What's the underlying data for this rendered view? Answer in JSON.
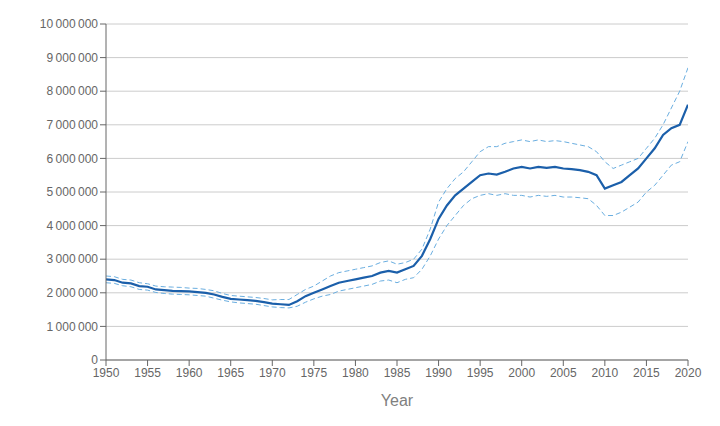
{
  "chart_data": {
    "type": "line",
    "xlabel": "Year",
    "x": [
      1950,
      1951,
      1952,
      1953,
      1954,
      1955,
      1956,
      1957,
      1958,
      1959,
      1960,
      1961,
      1962,
      1963,
      1964,
      1965,
      1966,
      1967,
      1968,
      1969,
      1970,
      1971,
      1972,
      1973,
      1974,
      1975,
      1976,
      1977,
      1978,
      1979,
      1980,
      1981,
      1982,
      1983,
      1984,
      1985,
      1986,
      1987,
      1988,
      1989,
      1990,
      1991,
      1992,
      1993,
      1994,
      1995,
      1996,
      1997,
      1998,
      1999,
      2000,
      2001,
      2002,
      2003,
      2004,
      2005,
      2006,
      2007,
      2008,
      2009,
      2010,
      2011,
      2012,
      2013,
      2014,
      2015,
      2016,
      2017,
      2018,
      2019,
      2020
    ],
    "series": [
      {
        "color": "#6aaee0",
        "line_style": "dashed",
        "values": [
          2500000,
          2480000,
          2400000,
          2380000,
          2300000,
          2270000,
          2200000,
          2180000,
          2170000,
          2160000,
          2140000,
          2130000,
          2100000,
          2060000,
          1980000,
          1920000,
          1900000,
          1880000,
          1860000,
          1830000,
          1790000,
          1800000,
          1800000,
          1950000,
          2100000,
          2200000,
          2350000,
          2500000,
          2600000,
          2650000,
          2700000,
          2750000,
          2800000,
          2900000,
          2950000,
          2850000,
          2900000,
          3000000,
          3300000,
          3900000,
          4700000,
          5100000,
          5400000,
          5600000,
          5900000,
          6200000,
          6350000,
          6350000,
          6450000,
          6500000,
          6550000,
          6500000,
          6550000,
          6500000,
          6530000,
          6500000,
          6450000,
          6400000,
          6350000,
          6200000,
          5900000,
          5700000,
          5800000,
          5900000,
          6000000,
          6300000,
          6600000,
          7000000,
          7500000,
          8000000,
          8700000
        ]
      },
      {
        "color": "#6aaee0",
        "line_style": "dashed",
        "values": [
          2300000,
          2280000,
          2210000,
          2180000,
          2100000,
          2080000,
          2010000,
          1980000,
          1960000,
          1950000,
          1940000,
          1920000,
          1900000,
          1840000,
          1780000,
          1730000,
          1700000,
          1680000,
          1660000,
          1620000,
          1580000,
          1560000,
          1550000,
          1600000,
          1720000,
          1820000,
          1900000,
          1950000,
          2050000,
          2100000,
          2150000,
          2200000,
          2250000,
          2350000,
          2380000,
          2300000,
          2400000,
          2450000,
          2700000,
          3100000,
          3600000,
          4000000,
          4300000,
          4600000,
          4800000,
          4900000,
          4950000,
          4900000,
          4950000,
          4900000,
          4900000,
          4850000,
          4900000,
          4870000,
          4900000,
          4850000,
          4850000,
          4830000,
          4800000,
          4600000,
          4300000,
          4300000,
          4400000,
          4550000,
          4700000,
          5000000,
          5200000,
          5500000,
          5800000,
          5900000,
          6500000
        ]
      },
      {
        "color": "#1b5faa",
        "line_style": "solid",
        "values": [
          2400000,
          2380000,
          2300000,
          2280000,
          2200000,
          2180000,
          2100000,
          2080000,
          2060000,
          2050000,
          2040000,
          2020000,
          2000000,
          1950000,
          1880000,
          1820000,
          1800000,
          1780000,
          1760000,
          1720000,
          1680000,
          1660000,
          1640000,
          1750000,
          1900000,
          2000000,
          2100000,
          2200000,
          2300000,
          2350000,
          2400000,
          2450000,
          2500000,
          2600000,
          2650000,
          2600000,
          2700000,
          2800000,
          3100000,
          3600000,
          4200000,
          4600000,
          4900000,
          5100000,
          5300000,
          5500000,
          5550000,
          5520000,
          5600000,
          5700000,
          5750000,
          5700000,
          5750000,
          5720000,
          5750000,
          5700000,
          5680000,
          5650000,
          5600000,
          5500000,
          5100000,
          5200000,
          5300000,
          5500000,
          5700000,
          6000000,
          6300000,
          6700000,
          6900000,
          7000000,
          7600000
        ]
      }
    ],
    "xlim": [
      1950,
      2020
    ],
    "xticks": [
      1950,
      1955,
      1960,
      1965,
      1970,
      1975,
      1980,
      1985,
      1990,
      1995,
      2000,
      2005,
      2010,
      2015,
      2020
    ],
    "ylim": [
      0,
      10000000
    ],
    "yticks": [
      0,
      {
        "value": 1000000,
        "label": "1 000 000"
      },
      {
        "value": 2000000,
        "label": "2 000 000"
      },
      {
        "value": 3000000,
        "label": "3 000 000"
      },
      {
        "value": 4000000,
        "label": "4 000 000"
      },
      {
        "value": 5000000,
        "label": "5 000 000"
      },
      {
        "value": 6000000,
        "label": "6 000 000"
      },
      {
        "value": 7000000,
        "label": "7 000 000"
      },
      {
        "value": 8000000,
        "label": "8 000 000"
      },
      {
        "value": 9000000,
        "label": "9 000 000"
      },
      {
        "value": 10000000,
        "label": "10 000 000"
      }
    ],
    "grid": true
  }
}
